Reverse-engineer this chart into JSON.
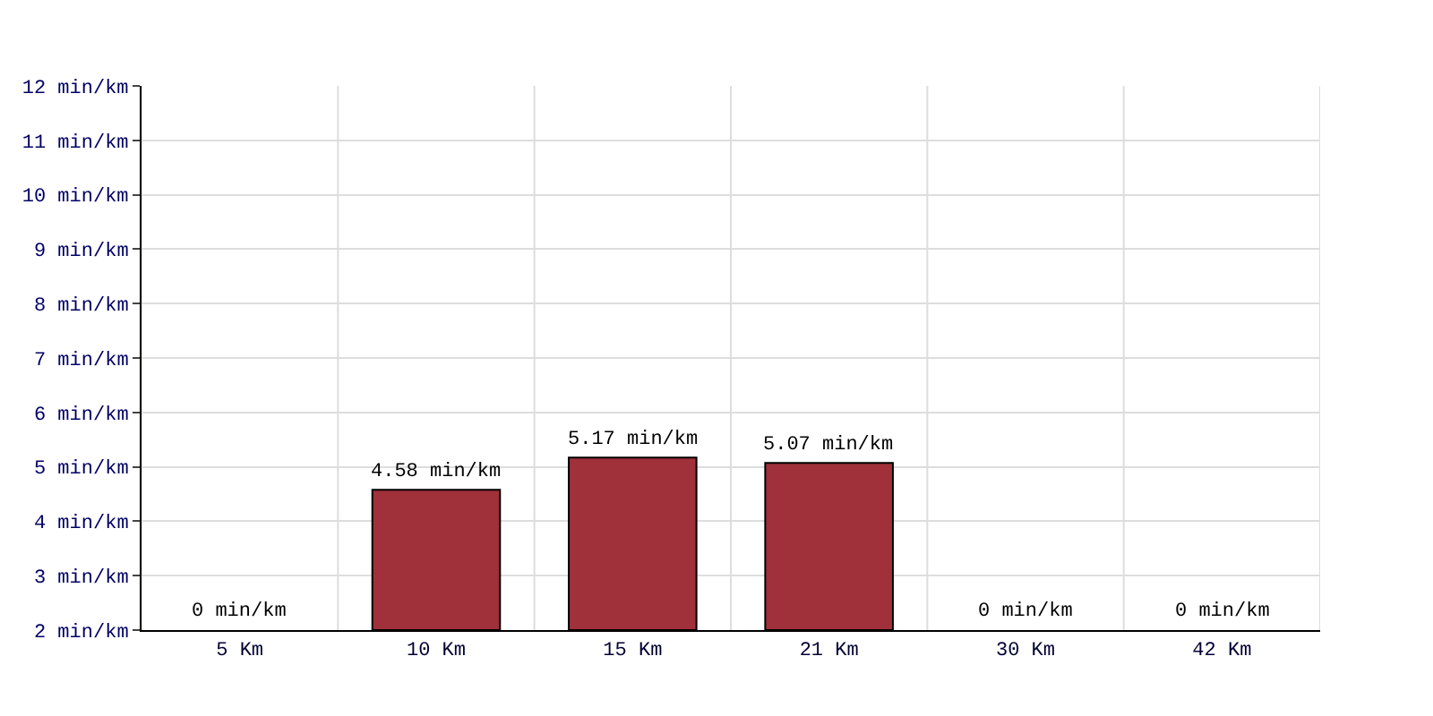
{
  "chart_data": {
    "type": "bar",
    "categories": [
      "5 Km",
      "10 Km",
      "15 Km",
      "21 Km",
      "30 Km",
      "42 Km"
    ],
    "values": [
      null,
      4.58,
      5.17,
      5.07,
      null,
      null
    ],
    "value_labels": [
      "0 min/km",
      "4.58 min/km",
      "5.17 min/km",
      "5.07 min/km",
      "0 min/km",
      "0 min/km"
    ],
    "color": "#a0303a",
    "ylim": [
      2,
      12
    ],
    "yticks": [
      {
        "value": 2,
        "label": "2 min/km"
      },
      {
        "value": 3,
        "label": "3 min/km"
      },
      {
        "value": 4,
        "label": "4 min/km"
      },
      {
        "value": 5,
        "label": "5 min/km"
      },
      {
        "value": 6,
        "label": "6 min/km"
      },
      {
        "value": 7,
        "label": "7 min/km"
      },
      {
        "value": 8,
        "label": "8 min/km"
      },
      {
        "value": 9,
        "label": "9 min/km"
      },
      {
        "value": 10,
        "label": "10 min/km"
      },
      {
        "value": 11,
        "label": "11 min/km"
      },
      {
        "value": 12,
        "label": "12 min/km"
      }
    ],
    "grid": true
  }
}
